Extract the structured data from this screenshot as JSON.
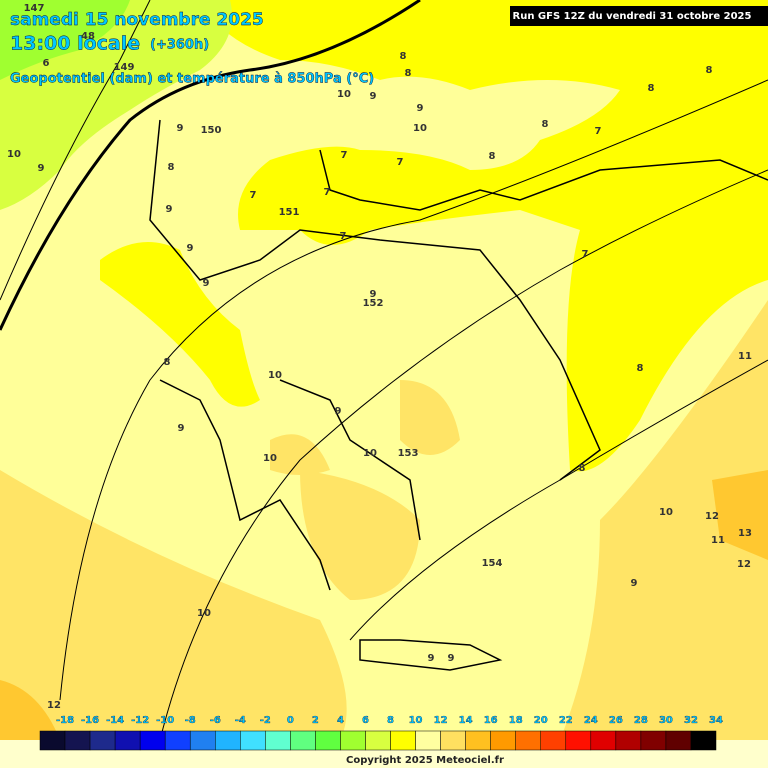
{
  "header": {
    "date": "samedi 15 novembre 2025",
    "time": "13:00 locale",
    "lead": "(+360h)",
    "field": "Geopotentiel (dam) et température à 850hPa (°C)",
    "run": "Run GFS 12Z du vendredi 31 octobre 2025"
  },
  "map_labels": [
    147,
    48,
    149,
    6,
    8,
    8,
    8,
    8,
    10,
    9,
    9,
    10,
    9,
    150,
    10,
    9,
    8,
    7,
    8,
    7,
    7,
    8,
    7,
    7,
    9,
    151,
    7,
    9,
    7,
    9,
    9,
    152,
    8,
    10,
    8,
    11,
    9,
    9,
    10,
    10,
    153,
    8,
    10,
    12,
    13,
    11,
    12,
    154,
    9,
    10,
    9,
    9,
    12
  ],
  "legend": {
    "ticks": [
      -18,
      -16,
      -14,
      -12,
      -10,
      -8,
      -6,
      -4,
      -2,
      0,
      2,
      4,
      6,
      8,
      10,
      12,
      14,
      16,
      18,
      20,
      22,
      24,
      26,
      28,
      30,
      32,
      34
    ],
    "colors": [
      "#0a0a2e",
      "#141450",
      "#1e2a8c",
      "#1010b0",
      "#0000ee",
      "#1040ff",
      "#2080f0",
      "#20b4ff",
      "#40e0ff",
      "#60ffd0",
      "#60ff80",
      "#60ff40",
      "#a0ff30",
      "#d8ff40",
      "#ffff00",
      "#ffffa0",
      "#ffe060",
      "#ffc020",
      "#ff9a00",
      "#ff7000",
      "#ff4000",
      "#ff1000",
      "#e00000",
      "#b00000",
      "#800000",
      "#600000",
      "#000000"
    ]
  },
  "copyright": "Copyright 2025 Meteociel.fr"
}
